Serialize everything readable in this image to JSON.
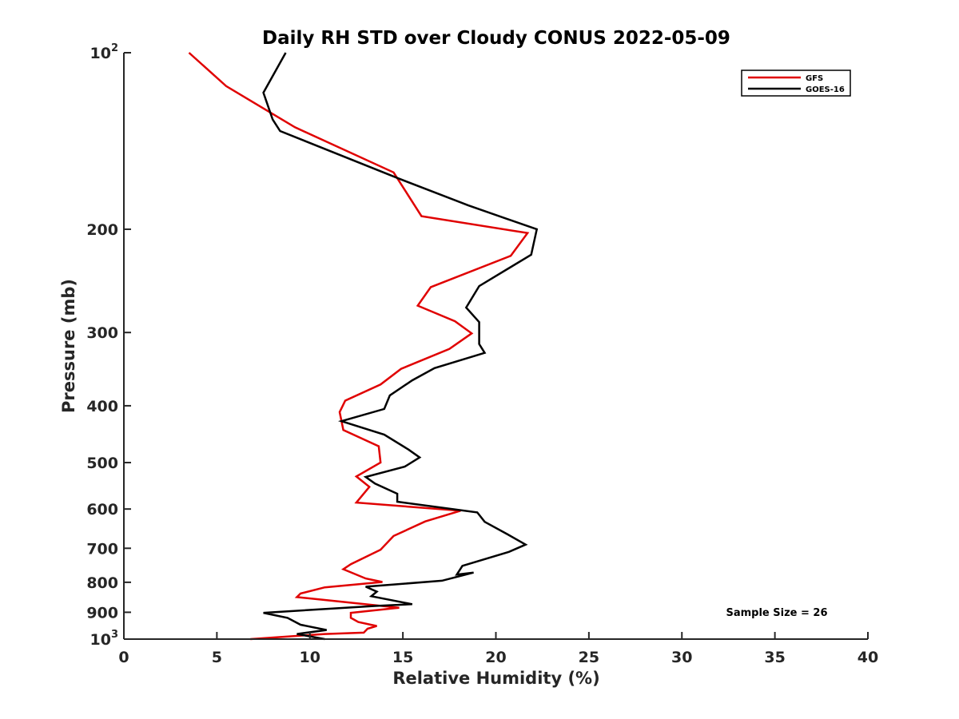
{
  "chart_data": {
    "type": "line",
    "title": "Daily RH STD over Cloudy CONUS 2022-05-09",
    "xlabel": "Relative Humidity (%)",
    "ylabel": "Pressure (mb)",
    "xlim": [
      0,
      40
    ],
    "ylim": [
      100,
      1000
    ],
    "yscale": "log",
    "y_reversed": true,
    "grid": false,
    "legend_position": "top-right",
    "x_ticks": [
      "0",
      "5",
      "10",
      "15",
      "20",
      "25",
      "30",
      "35",
      "40"
    ],
    "x_tick_values": [
      0,
      5,
      10,
      15,
      20,
      25,
      30,
      35,
      40
    ],
    "y_ticks": [
      {
        "value": 100,
        "base": "10",
        "exp": "2"
      },
      {
        "value": 200,
        "label": "200"
      },
      {
        "value": 300,
        "label": "300"
      },
      {
        "value": 400,
        "label": "400"
      },
      {
        "value": 500,
        "label": "500"
      },
      {
        "value": 600,
        "label": "600"
      },
      {
        "value": 700,
        "label": "700"
      },
      {
        "value": 800,
        "label": "800"
      },
      {
        "value": 900,
        "label": "900"
      },
      {
        "value": 1000,
        "base": "10",
        "exp": "3"
      }
    ],
    "annotation": "Sample Size = 26",
    "series": [
      {
        "name": "GFS",
        "color": "#e00000",
        "points": [
          [
            3.5,
            100
          ],
          [
            5.5,
            114
          ],
          [
            9.2,
            134
          ],
          [
            14.5,
            160
          ],
          [
            16.0,
            190
          ],
          [
            21.7,
            203
          ],
          [
            20.8,
            222
          ],
          [
            16.5,
            251
          ],
          [
            15.8,
            270
          ],
          [
            17.8,
            287
          ],
          [
            18.7,
            301
          ],
          [
            17.5,
            320
          ],
          [
            14.9,
            346
          ],
          [
            13.8,
            368
          ],
          [
            11.9,
            392
          ],
          [
            11.6,
            410
          ],
          [
            11.8,
            440
          ],
          [
            13.7,
            469
          ],
          [
            13.8,
            500
          ],
          [
            12.5,
            528
          ],
          [
            13.2,
            550
          ],
          [
            12.5,
            585
          ],
          [
            18.1,
            604
          ],
          [
            16.2,
            630
          ],
          [
            14.5,
            667
          ],
          [
            13.8,
            704
          ],
          [
            12.2,
            745
          ],
          [
            11.8,
            760
          ],
          [
            13.0,
            788
          ],
          [
            13.9,
            799
          ],
          [
            10.8,
            816
          ],
          [
            9.5,
            836
          ],
          [
            9.3,
            848
          ],
          [
            10.7,
            857
          ],
          [
            14.8,
            884
          ],
          [
            12.2,
            902
          ],
          [
            12.2,
            920
          ],
          [
            12.6,
            935
          ],
          [
            13.6,
            950
          ],
          [
            13.1,
            960
          ],
          [
            12.9,
            975
          ],
          [
            10.8,
            980
          ],
          [
            6.8,
            1000
          ]
        ]
      },
      {
        "name": "GOES-16",
        "color": "#000000",
        "points": [
          [
            8.7,
            100
          ],
          [
            7.5,
            117
          ],
          [
            8.0,
            130
          ],
          [
            8.4,
            136
          ],
          [
            14.8,
            164
          ],
          [
            18.5,
            182
          ],
          [
            22.2,
            200
          ],
          [
            21.9,
            221
          ],
          [
            19.1,
            250
          ],
          [
            18.4,
            272
          ],
          [
            19.1,
            288
          ],
          [
            19.1,
            314
          ],
          [
            19.4,
            325
          ],
          [
            16.7,
            345
          ],
          [
            15.5,
            362
          ],
          [
            14.3,
            384
          ],
          [
            14.0,
            405
          ],
          [
            11.7,
            425
          ],
          [
            14.0,
            448
          ],
          [
            15.3,
            475
          ],
          [
            15.9,
            490
          ],
          [
            15.1,
            508
          ],
          [
            13.0,
            529
          ],
          [
            13.5,
            543
          ],
          [
            14.7,
            565
          ],
          [
            14.7,
            583
          ],
          [
            19.0,
            608
          ],
          [
            19.4,
            631
          ],
          [
            20.6,
            662
          ],
          [
            21.6,
            690
          ],
          [
            20.7,
            710
          ],
          [
            18.2,
            750
          ],
          [
            17.9,
            776
          ],
          [
            18.8,
            770
          ],
          [
            17.1,
            795
          ],
          [
            13.0,
            814
          ],
          [
            13.6,
            830
          ],
          [
            13.3,
            845
          ],
          [
            15.5,
            872
          ],
          [
            13.5,
            878
          ],
          [
            7.5,
            902
          ],
          [
            8.8,
            920
          ],
          [
            9.5,
            945
          ],
          [
            10.9,
            965
          ],
          [
            9.3,
            980
          ],
          [
            10.8,
            1000
          ]
        ]
      }
    ]
  }
}
